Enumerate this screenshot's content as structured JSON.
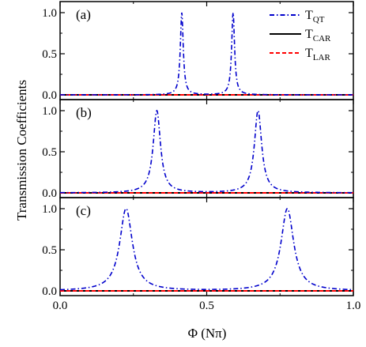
{
  "chart_data": {
    "type": "line",
    "xlabel": "Φ (Nπ)",
    "ylabel": "Transmission Coefficients",
    "xlim": [
      0.0,
      1.0
    ],
    "ylim": [
      0.0,
      1.05
    ],
    "x_ticks": [
      "0.0",
      "0.5",
      "1.0"
    ],
    "y_ticks": [
      "0.0",
      "0.5",
      "1.0"
    ],
    "legend": {
      "placement": "top-right of panel (a)",
      "entries": [
        {
          "main": "T",
          "sub": "QT",
          "color": "#0000cc",
          "dash": "dash-dot"
        },
        {
          "main": "T",
          "sub": "CAR",
          "color": "#000000",
          "dash": "solid"
        },
        {
          "main": "T",
          "sub": "LAR",
          "color": "#ff0000",
          "dash": "dashed"
        }
      ]
    },
    "panels": [
      {
        "label": "(a)",
        "series": [
          {
            "name": "T_QT",
            "peaks": [
              {
                "x": 0.415,
                "height": 1.0,
                "width": 0.006
              }
            ]
          },
          {
            "name": "T_CAR",
            "value": 0.0
          },
          {
            "name": "T_LAR",
            "value": 0.0
          }
        ]
      },
      {
        "label": "(b)",
        "series": [
          {
            "name": "T_QT",
            "peaks": [
              {
                "x": 0.33,
                "height": 1.0,
                "width": 0.015
              },
              {
                "x": 0.675,
                "height": 1.0,
                "width": 0.015
              }
            ]
          },
          {
            "name": "T_CAR",
            "value": 0.0
          },
          {
            "name": "T_LAR",
            "value": 0.0
          }
        ]
      },
      {
        "label": "(c)",
        "series": [
          {
            "name": "T_QT",
            "peaks": [
              {
                "x": 0.225,
                "height": 1.0,
                "width": 0.026
              },
              {
                "x": 0.775,
                "height": 1.0,
                "width": 0.026
              }
            ]
          },
          {
            "name": "T_CAR",
            "value": 0.0
          },
          {
            "name": "T_LAR",
            "value": 0.0
          }
        ]
      }
    ],
    "notes_a_second_peak": {
      "x": 0.59,
      "height": 1.0,
      "width": 0.006
    }
  }
}
